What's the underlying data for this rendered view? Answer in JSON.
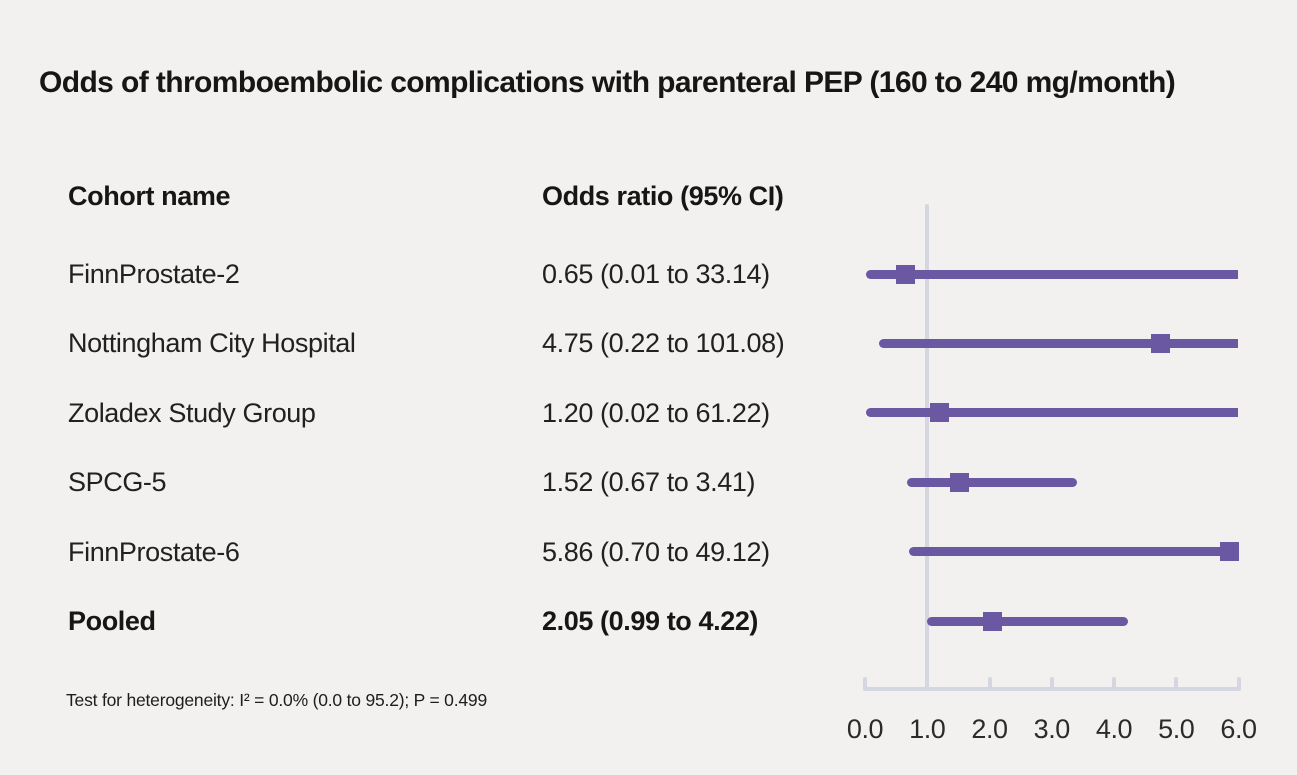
{
  "title": "Odds of thromboembolic complications with parenteral PEP (160 to 240 mg/month)",
  "columns": {
    "cohort": "Cohort name",
    "odds": "Odds ratio (95% CI)"
  },
  "footnote": "Test for heterogeneity: I² = 0.0% (0.0 to 95.2); P = 0.499",
  "colors": {
    "background": "#f2f1ef",
    "marker_purple": "#6a58a2",
    "axis_gray": "#d4d7e0",
    "text_dark": "#1d1d1b"
  },
  "chart_data": {
    "type": "forest",
    "title": "Odds of thromboembolic complications with parenteral PEP (160 to 240 mg/month)",
    "xlabel": "",
    "xlim": [
      0.0,
      6.0
    ],
    "tick_labels": [
      "0.0",
      "1.0",
      "2.0",
      "3.0",
      "4.0",
      "5.0",
      "6.0"
    ],
    "tick_values": [
      0,
      1,
      2,
      3,
      4,
      5,
      6
    ],
    "reference_line": 1.0,
    "grid": false,
    "rows": [
      {
        "label": "FinnProstate-2",
        "or": 0.65,
        "ci_low": 0.01,
        "ci_high": 33.14,
        "display": "0.65 (0.01 to 33.14)",
        "bold": false
      },
      {
        "label": "Nottingham City Hospital",
        "or": 4.75,
        "ci_low": 0.22,
        "ci_high": 101.08,
        "display": "4.75 (0.22 to 101.08)",
        "bold": false
      },
      {
        "label": "Zoladex Study Group",
        "or": 1.2,
        "ci_low": 0.02,
        "ci_high": 61.22,
        "display": "1.20 (0.02 to 61.22)",
        "bold": false
      },
      {
        "label": "SPCG-5",
        "or": 1.52,
        "ci_low": 0.67,
        "ci_high": 3.41,
        "display": "1.52 (0.67 to 3.41)",
        "bold": false
      },
      {
        "label": "FinnProstate-6",
        "or": 5.86,
        "ci_low": 0.7,
        "ci_high": 49.12,
        "display": "5.86 (0.70 to 49.12)",
        "bold": false
      },
      {
        "label": "Pooled",
        "or": 2.05,
        "ci_low": 0.99,
        "ci_high": 4.22,
        "display": "2.05 (0.99 to 4.22)",
        "bold": true
      }
    ]
  }
}
